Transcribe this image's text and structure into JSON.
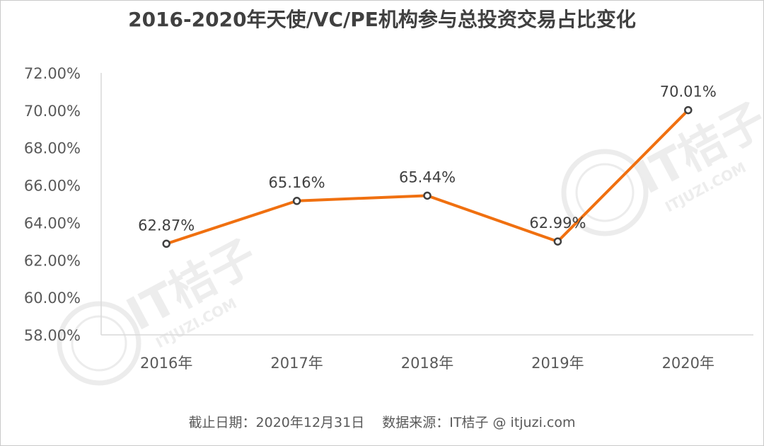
{
  "header": {
    "title": "2016-2020年天使/VC/PE机构参与总投资交易占比变化"
  },
  "footer": {
    "source": "截止日期：2020年12月31日　 数据来源：IT桔子 @ itjuzi.com"
  },
  "watermark": {
    "brand": "IT桔子",
    "site": "ITJUZI.COM"
  },
  "colors": {
    "line": "#f07010",
    "marker_fill": "#ffffff",
    "marker_stroke": "#404040",
    "axis": "#d9d9d9"
  },
  "chart_data": {
    "type": "line",
    "title": "2016-2020年天使/VC/PE机构参与总投资交易占比变化",
    "categories": [
      "2016年",
      "2017年",
      "2018年",
      "2019年",
      "2020年"
    ],
    "values": [
      62.87,
      65.16,
      65.44,
      62.99,
      70.01
    ],
    "data_labels": [
      "62.87%",
      "65.16%",
      "65.44%",
      "62.99%",
      "70.01%"
    ],
    "ylim": [
      58,
      72
    ],
    "yticks": [
      58,
      60,
      62,
      64,
      66,
      68,
      70,
      72
    ],
    "ytick_labels": [
      "58.00%",
      "60.00%",
      "62.00%",
      "64.00%",
      "66.00%",
      "68.00%",
      "70.00%",
      "72.00%"
    ],
    "grid": false,
    "legend": "none"
  }
}
